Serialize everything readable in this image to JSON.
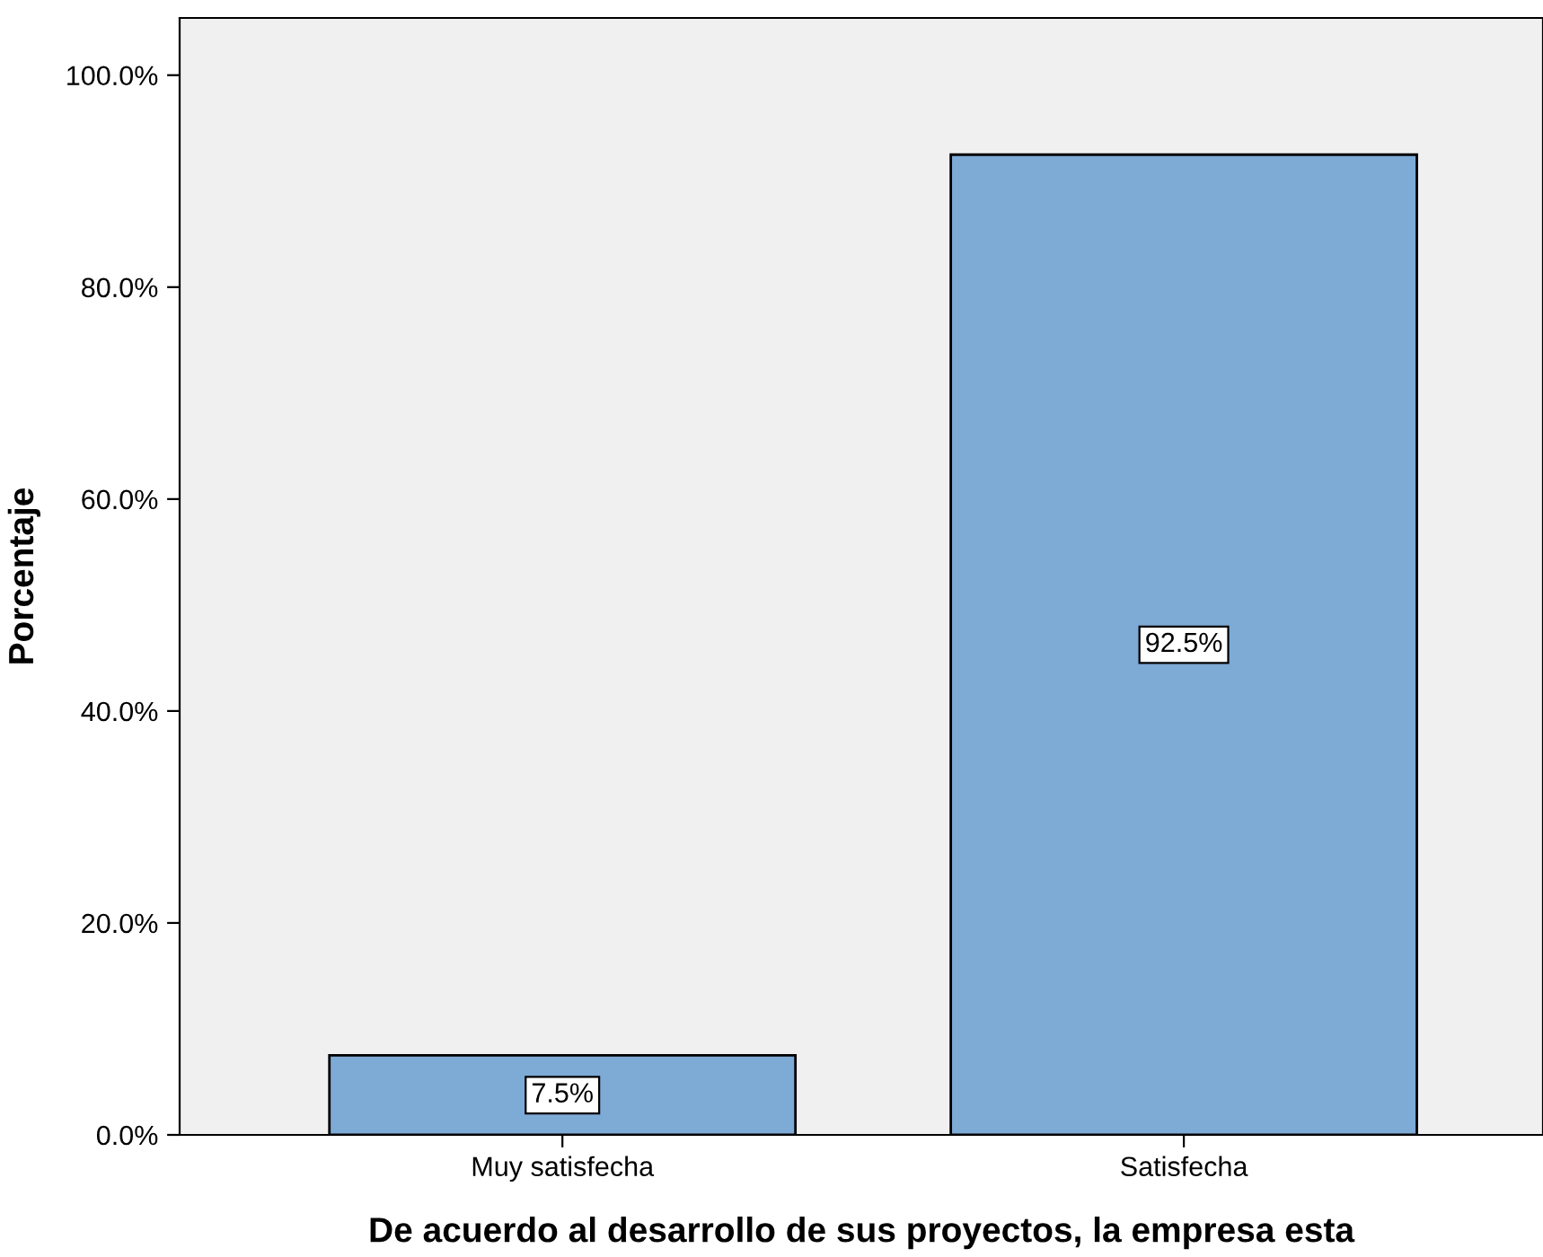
{
  "chart_data": {
    "type": "bar",
    "xlabel": "De acuerdo al desarrollo de sus proyectos, la empresa esta",
    "ylabel": "Porcentaje",
    "categories": [
      "Muy satisfecha",
      "Satisfecha"
    ],
    "values": [
      7.5,
      92.5
    ],
    "color": "#7eaad6",
    "value_labels": [
      "7.5%",
      "92.5%"
    ],
    "ylim": [
      0,
      105.4
    ],
    "yticks": [
      {
        "value": 0,
        "label": "0.0%"
      },
      {
        "value": 20,
        "label": "20.0%"
      },
      {
        "value": 40,
        "label": "40.0%"
      },
      {
        "value": 60,
        "label": "60.0%"
      },
      {
        "value": 80,
        "label": "80.0%"
      },
      {
        "value": 100,
        "label": "100.0%"
      }
    ],
    "grid": false,
    "legend": false
  }
}
